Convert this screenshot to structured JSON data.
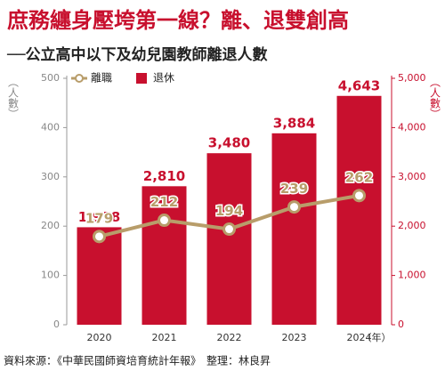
{
  "chart_data": {
    "type": "bar-line",
    "title": "庶務纏身壓垮第一線？離、退雙創高",
    "subtitle": "──公立高中以下及幼兒園教師離退人數",
    "y_label": "（人數）",
    "y2_label": "（人數）",
    "x_label": "（年）",
    "source": "資料來源：《中華民國師資培育統計年報》　整理：林良昇",
    "categories": [
      "2020",
      "2021",
      "2022",
      "2023",
      "2024"
    ],
    "series": [
      {
        "name": "離職",
        "type": "line",
        "color": "#b89d6a",
        "values": [
          179,
          212,
          194,
          239,
          262
        ]
      },
      {
        "name": "退休",
        "type": "bar",
        "color": "#c8102e",
        "axis": "y2",
        "values": [
          1978,
          2810,
          3480,
          3884,
          4643
        ],
        "value_labels": [
          "1,978",
          "2,810",
          "3,480",
          "3,884",
          "4,643"
        ]
      }
    ],
    "ylim": [
      0,
      500
    ],
    "yticks": [
      0,
      100,
      200,
      300,
      400,
      500
    ],
    "y2lim": [
      0,
      5000
    ],
    "y2ticks": [
      0,
      {
        "value": 1000,
        "label": "1,000"
      },
      {
        "value": 2000,
        "label": "2,000"
      },
      {
        "value": 3000,
        "label": "3,000"
      },
      {
        "value": 4000,
        "label": "4,000"
      },
      {
        "value": 5000,
        "label": "5,000"
      }
    ],
    "legend": "upper left"
  }
}
